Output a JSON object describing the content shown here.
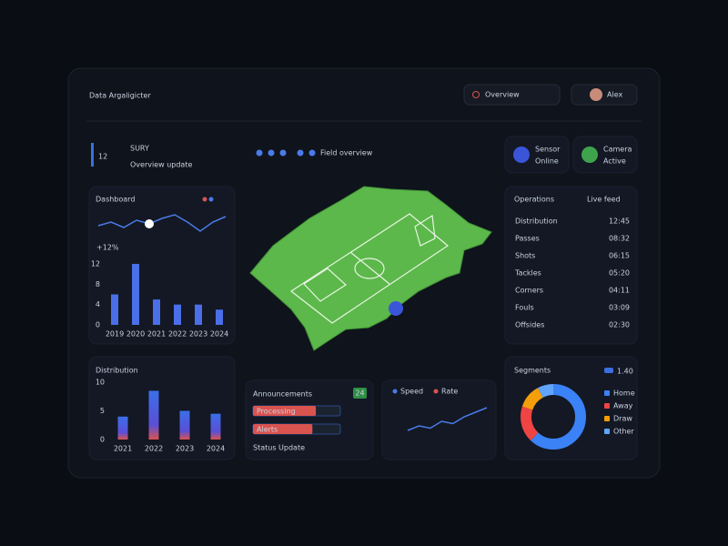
{
  "header": {
    "title": "Data Argaligicter",
    "search": "Overview",
    "user": "Alex"
  },
  "kpi": {
    "value": 12,
    "unit": "SURY",
    "caption": "Overview update"
  },
  "field": {
    "caption": "Field overview"
  },
  "status_cards": [
    {
      "label": "Sensor",
      "status": "Online"
    },
    {
      "label": "Camera",
      "status": "Active"
    }
  ],
  "trend": {
    "title": "Dashboard",
    "change": "+12%",
    "line": {
      "ylim": [
        0,
        10
      ],
      "values": [
        5,
        6,
        4.5,
        6.5,
        5.5,
        7,
        8,
        6,
        3.5,
        6,
        7.5
      ]
    },
    "bars": {
      "categories": [
        "2019",
        "2020",
        "2021",
        "2022",
        "2023",
        "2024"
      ],
      "values": [
        6,
        12,
        5,
        4,
        4,
        3
      ],
      "ylim": [
        0,
        12
      ],
      "yticks": [
        0,
        4,
        8,
        12
      ]
    }
  },
  "operations": {
    "title": "Operations",
    "subtitle": "Live feed",
    "rows": [
      {
        "label": "Distribution",
        "value": "12:45"
      },
      {
        "label": "Passes",
        "value": "08:32"
      },
      {
        "label": "Shots",
        "value": "06:15"
      },
      {
        "label": "Tackles",
        "value": "05:20"
      },
      {
        "label": "Corners",
        "value": "04:11"
      },
      {
        "label": "Fouls",
        "value": "03:09"
      },
      {
        "label": "Offsides",
        "value": "02:30"
      }
    ]
  },
  "distribution": {
    "title": "Distribution",
    "categories": [
      "2021",
      "2022",
      "2023",
      "2024"
    ],
    "values": [
      4,
      8.5,
      5,
      4.5
    ],
    "ylim": [
      0,
      10
    ],
    "yticks": [
      0,
      5,
      10
    ]
  },
  "announcements": {
    "title": "Announcements",
    "badge": "24",
    "rows": [
      {
        "label": "Processing",
        "value": 72
      },
      {
        "label": "Alerts",
        "value": 68
      }
    ],
    "footer": "Status Update"
  },
  "speed": {
    "legend": [
      "Speed",
      "Rate"
    ],
    "ylim": [
      0,
      10
    ],
    "values": [
      3,
      4,
      3.5,
      5,
      4.5,
      6,
      7,
      8
    ]
  },
  "segments": {
    "title": "Segments",
    "total": "1.40",
    "ylim": [
      0,
      100
    ],
    "items": [
      {
        "name": "Home",
        "value": 62,
        "color": "#3b82f6"
      },
      {
        "name": "Away",
        "value": 18,
        "color": "#ef4444"
      },
      {
        "name": "Draw",
        "value": 12,
        "color": "#f59e0b"
      },
      {
        "name": "Other",
        "value": 8,
        "color": "#60a5fa"
      }
    ]
  }
}
